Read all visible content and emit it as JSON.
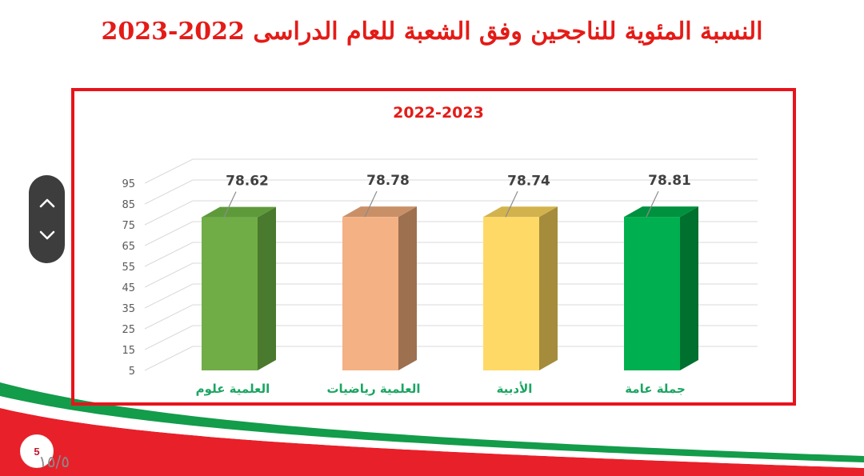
{
  "slide": {
    "title": "النسبة المئوية للناجحين وفق الشعبة للعام الدراسى 2022-2023",
    "page_number": "5",
    "page_fraction": "١٥/٥"
  },
  "colors": {
    "title_red": "#e41b17",
    "frame_red": "#e8131b",
    "label_green": "#1aa561"
  },
  "nav": {
    "up_icon": "chevron-up-icon",
    "down_icon": "chevron-down-icon"
  },
  "chart_data": {
    "type": "bar",
    "title": "2022-2023",
    "categories": [
      "العلمية علوم",
      "العلمية رياضيات",
      "الأدبية",
      "جملة عامة"
    ],
    "values": [
      78.62,
      78.78,
      78.74,
      78.81
    ],
    "bar_colors": [
      {
        "front": "#70ad47",
        "side": "#4a7a2d",
        "top": "#5e9a3a"
      },
      {
        "front": "#f4b183",
        "side": "#9d7050",
        "top": "#c99068"
      },
      {
        "front": "#ffd966",
        "side": "#a58c3c",
        "top": "#d2b24c"
      },
      {
        "front": "#00b050",
        "side": "#00702f",
        "top": "#00913f"
      }
    ],
    "yticks": [
      5,
      15,
      25,
      35,
      45,
      55,
      65,
      75,
      85,
      95
    ],
    "ylim": [
      5,
      95
    ],
    "grid": true,
    "three_d": true
  }
}
